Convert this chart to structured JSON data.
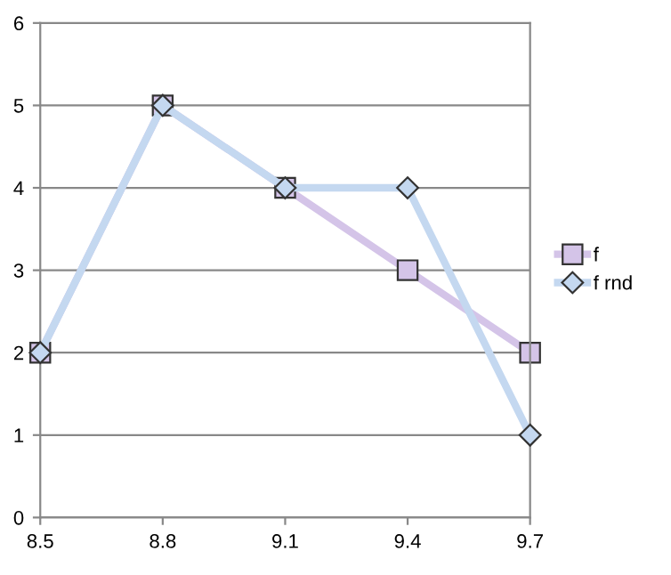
{
  "chart_data": {
    "type": "line",
    "x": [
      8.5,
      8.8,
      9.1,
      9.4,
      9.7
    ],
    "series": [
      {
        "name": "f",
        "color": "#d4c4e8",
        "marker": "square",
        "values": [
          2,
          5,
          4,
          3,
          2
        ]
      },
      {
        "name": "f rnd",
        "color": "#c4d8f0",
        "marker": "diamond",
        "values": [
          2,
          5,
          4,
          4,
          1
        ]
      }
    ],
    "xlim": [
      8.5,
      9.7
    ],
    "xticks": [
      8.5,
      8.8,
      9.1,
      9.4,
      9.7
    ],
    "ylim": [
      0,
      6
    ],
    "yticks": [
      0,
      1,
      2,
      3,
      4,
      5,
      6
    ],
    "grid": "y",
    "legend": "right"
  }
}
